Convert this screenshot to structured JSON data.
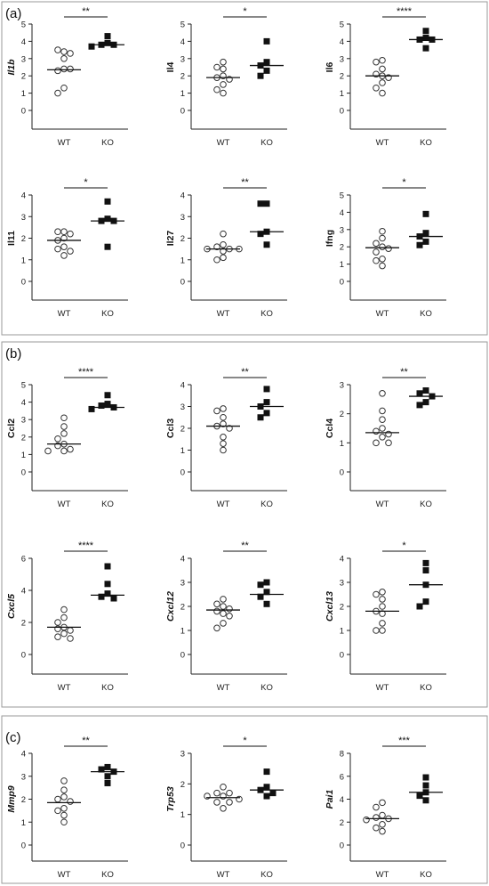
{
  "panel_labels": [
    "(a)",
    "(b)",
    "(c)"
  ],
  "chart_data": [
    {
      "type": "scatter",
      "ylabel": "Il1b",
      "italic": true,
      "ylim": [
        0,
        5
      ],
      "yticks": [
        0,
        1,
        2,
        3,
        4,
        5
      ],
      "categories": [
        "WT",
        "KO"
      ],
      "significance": "**",
      "series": [
        {
          "values": [
            3.4,
            3.5,
            3.3,
            3.0,
            2.4,
            2.3,
            2.4,
            1.3,
            1.0
          ],
          "median": 2.35,
          "style": "open"
        },
        {
          "values": [
            4.3,
            3.9,
            3.8,
            3.8,
            3.7
          ],
          "median": 3.8,
          "style": "filled"
        }
      ]
    },
    {
      "type": "scatter",
      "ylabel": "Il4",
      "italic": false,
      "ylim": [
        0,
        5
      ],
      "yticks": [
        0,
        1,
        2,
        3,
        4,
        5
      ],
      "categories": [
        "WT",
        "KO"
      ],
      "significance": "*",
      "series": [
        {
          "values": [
            2.8,
            2.5,
            2.4,
            2.0,
            1.9,
            1.8,
            1.5,
            1.2,
            1.0
          ],
          "median": 1.9,
          "style": "open"
        },
        {
          "values": [
            4.0,
            2.8,
            2.6,
            2.3,
            2.0
          ],
          "median": 2.6,
          "style": "filled"
        }
      ]
    },
    {
      "type": "scatter",
      "ylabel": "Il6",
      "italic": false,
      "ylim": [
        0,
        5
      ],
      "yticks": [
        0,
        1,
        2,
        3,
        4,
        5
      ],
      "categories": [
        "WT",
        "KO"
      ],
      "significance": "****",
      "series": [
        {
          "values": [
            2.9,
            2.8,
            2.4,
            2.1,
            2.0,
            1.9,
            1.6,
            1.3,
            1.0
          ],
          "median": 2.0,
          "style": "open"
        },
        {
          "values": [
            4.6,
            4.2,
            4.1,
            4.1,
            3.6
          ],
          "median": 4.1,
          "style": "filled"
        }
      ]
    },
    {
      "type": "scatter",
      "ylabel": "Il11",
      "italic": false,
      "ylim": [
        0,
        4
      ],
      "yticks": [
        0,
        1,
        2,
        3,
        4
      ],
      "categories": [
        "WT",
        "KO"
      ],
      "significance": "*",
      "series": [
        {
          "values": [
            2.3,
            2.3,
            2.2,
            2.0,
            1.9,
            1.6,
            1.5,
            1.4,
            1.2
          ],
          "median": 1.9,
          "style": "open"
        },
        {
          "values": [
            3.7,
            2.9,
            2.8,
            2.8,
            1.6
          ],
          "median": 2.8,
          "style": "filled"
        }
      ]
    },
    {
      "type": "scatter",
      "ylabel": "Il27",
      "italic": false,
      "ylim": [
        0,
        4
      ],
      "yticks": [
        0,
        1,
        2,
        3,
        4
      ],
      "categories": [
        "WT",
        "KO"
      ],
      "significance": "**",
      "series": [
        {
          "values": [
            2.2,
            1.7,
            1.6,
            1.5,
            1.5,
            1.5,
            1.4,
            1.1,
            1.0
          ],
          "median": 1.5,
          "style": "open"
        },
        {
          "values": [
            3.6,
            3.6,
            2.3,
            2.2,
            1.7
          ],
          "median": 2.3,
          "style": "filled"
        }
      ]
    },
    {
      "type": "scatter",
      "ylabel": "Ifng",
      "italic": false,
      "ylim": [
        0,
        5
      ],
      "yticks": [
        0,
        1,
        2,
        3,
        4,
        5
      ],
      "categories": [
        "WT",
        "KO"
      ],
      "significance": "*",
      "series": [
        {
          "values": [
            2.9,
            2.5,
            2.2,
            2.0,
            1.9,
            1.7,
            1.3,
            1.2,
            0.9
          ],
          "median": 1.95,
          "style": "open"
        },
        {
          "values": [
            3.9,
            2.8,
            2.6,
            2.3,
            2.1
          ],
          "median": 2.6,
          "style": "filled"
        }
      ]
    },
    {
      "type": "scatter",
      "ylabel": "Ccl2",
      "italic": false,
      "ylim": [
        0,
        5
      ],
      "yticks": [
        0,
        1,
        2,
        3,
        4,
        5
      ],
      "categories": [
        "WT",
        "KO"
      ],
      "significance": "****",
      "series": [
        {
          "values": [
            3.1,
            2.6,
            2.2,
            1.9,
            1.6,
            1.5,
            1.3,
            1.2,
            1.2
          ],
          "median": 1.6,
          "style": "open"
        },
        {
          "values": [
            4.4,
            3.9,
            3.8,
            3.7,
            3.6
          ],
          "median": 3.7,
          "style": "filled"
        }
      ]
    },
    {
      "type": "scatter",
      "ylabel": "Ccl3",
      "italic": false,
      "ylim": [
        0,
        4
      ],
      "yticks": [
        0,
        1,
        2,
        3,
        4
      ],
      "categories": [
        "WT",
        "KO"
      ],
      "significance": "**",
      "series": [
        {
          "values": [
            2.9,
            2.8,
            2.5,
            2.2,
            2.1,
            2.0,
            1.6,
            1.3,
            1.0
          ],
          "median": 2.1,
          "style": "open"
        },
        {
          "values": [
            3.8,
            3.2,
            3.0,
            2.7,
            2.5
          ],
          "median": 3.0,
          "style": "filled"
        }
      ]
    },
    {
      "type": "scatter",
      "ylabel": "Ccl4",
      "italic": false,
      "ylim": [
        0,
        3
      ],
      "yticks": [
        0,
        1,
        2,
        3
      ],
      "categories": [
        "WT",
        "KO"
      ],
      "significance": "**",
      "series": [
        {
          "values": [
            2.7,
            2.1,
            1.8,
            1.5,
            1.4,
            1.3,
            1.2,
            1.0,
            1.0
          ],
          "median": 1.35,
          "style": "open"
        },
        {
          "values": [
            2.8,
            2.7,
            2.6,
            2.4,
            2.3
          ],
          "median": 2.6,
          "style": "filled"
        }
      ]
    },
    {
      "type": "scatter",
      "ylabel": "Cxcl5",
      "italic": true,
      "ylim": [
        0,
        6
      ],
      "yticks": [
        0,
        2,
        4,
        6
      ],
      "categories": [
        "WT",
        "KO"
      ],
      "significance": "****",
      "series": [
        {
          "values": [
            2.8,
            2.3,
            2.0,
            1.7,
            1.6,
            1.5,
            1.3,
            1.1,
            1.0
          ],
          "median": 1.7,
          "style": "open"
        },
        {
          "values": [
            5.5,
            4.4,
            3.8,
            3.6,
            3.5
          ],
          "median": 3.7,
          "style": "filled"
        }
      ]
    },
    {
      "type": "scatter",
      "ylabel": "Cxcl12",
      "italic": true,
      "ylim": [
        0,
        4
      ],
      "yticks": [
        0,
        1,
        2,
        3,
        4
      ],
      "categories": [
        "WT",
        "KO"
      ],
      "significance": "**",
      "series": [
        {
          "values": [
            2.3,
            2.1,
            2.0,
            1.9,
            1.8,
            1.7,
            1.6,
            1.3,
            1.1
          ],
          "median": 1.85,
          "style": "open"
        },
        {
          "values": [
            3.0,
            2.9,
            2.6,
            2.4,
            2.1
          ],
          "median": 2.5,
          "style": "filled"
        }
      ]
    },
    {
      "type": "scatter",
      "ylabel": "Cxcl13",
      "italic": true,
      "ylim": [
        0,
        4
      ],
      "yticks": [
        0,
        1,
        2,
        3,
        4
      ],
      "categories": [
        "WT",
        "KO"
      ],
      "significance": "*",
      "series": [
        {
          "values": [
            2.6,
            2.5,
            2.3,
            2.0,
            1.8,
            1.7,
            1.3,
            1.0,
            1.0
          ],
          "median": 1.8,
          "style": "open"
        },
        {
          "values": [
            3.8,
            3.5,
            2.9,
            2.2,
            2.0
          ],
          "median": 2.9,
          "style": "filled"
        }
      ]
    },
    {
      "type": "scatter",
      "ylabel": "Mmp9",
      "italic": true,
      "ylim": [
        0,
        4
      ],
      "yticks": [
        0,
        1,
        2,
        3,
        4
      ],
      "categories": [
        "WT",
        "KO"
      ],
      "significance": "**",
      "series": [
        {
          "values": [
            2.8,
            2.4,
            2.1,
            2.0,
            1.9,
            1.6,
            1.5,
            1.3,
            1.0
          ],
          "median": 1.85,
          "style": "open"
        },
        {
          "values": [
            3.4,
            3.3,
            3.2,
            3.0,
            2.7
          ],
          "median": 3.2,
          "style": "filled"
        }
      ]
    },
    {
      "type": "scatter",
      "ylabel": "Trp53",
      "italic": true,
      "ylim": [
        0,
        3
      ],
      "yticks": [
        0,
        1,
        2,
        3
      ],
      "categories": [
        "WT",
        "KO"
      ],
      "significance": "*",
      "series": [
        {
          "values": [
            1.9,
            1.7,
            1.7,
            1.6,
            1.6,
            1.5,
            1.4,
            1.4,
            1.2
          ],
          "median": 1.55,
          "style": "open"
        },
        {
          "values": [
            2.4,
            1.9,
            1.8,
            1.7,
            1.6
          ],
          "median": 1.8,
          "style": "filled"
        }
      ]
    },
    {
      "type": "scatter",
      "ylabel": "Pai1",
      "italic": true,
      "ylim": [
        0,
        8
      ],
      "yticks": [
        0,
        2,
        4,
        6,
        8
      ],
      "categories": [
        "WT",
        "KO"
      ],
      "significance": "***",
      "series": [
        {
          "values": [
            3.7,
            3.3,
            2.6,
            2.4,
            2.3,
            2.2,
            1.8,
            1.5,
            1.2
          ],
          "median": 2.3,
          "style": "open"
        },
        {
          "values": [
            5.9,
            5.2,
            4.6,
            4.3,
            3.9
          ],
          "median": 4.6,
          "style": "filled"
        }
      ]
    }
  ]
}
